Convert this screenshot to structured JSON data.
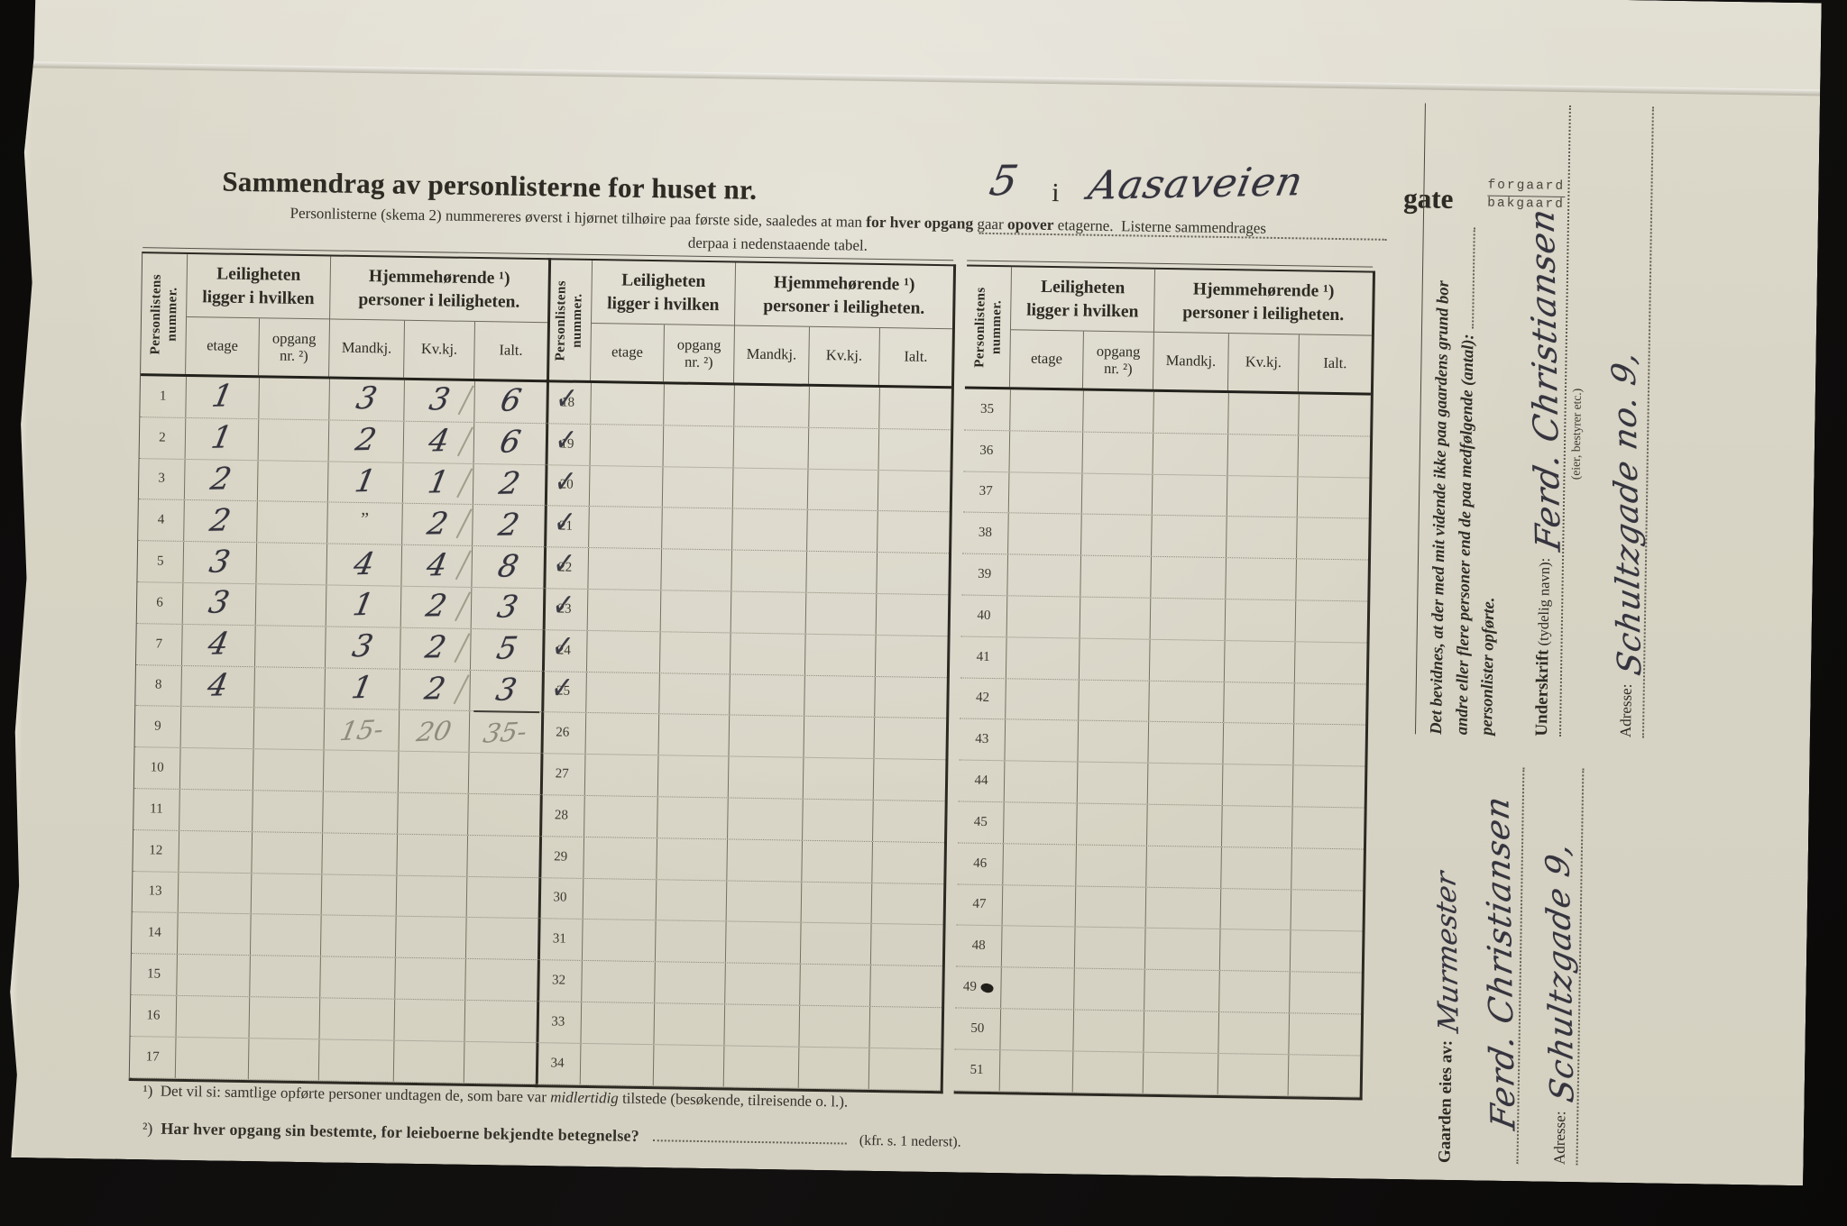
{
  "header": {
    "title_prefix": "Sammendrag av personlisterne for huset nr.",
    "house_number": "5",
    "connector": "i",
    "street_name": "Aasaveien",
    "gate_label": "gate",
    "gate_option_top": "forgaard",
    "gate_option_bottom": "bakgaard"
  },
  "subtitle": {
    "part1": "Personlisterne (skema 2) nummereres øverst i hjørnet tilhøire paa første side, saaledes at man",
    "bold1": "for hver opgang",
    "part2": "gaar",
    "bold2": "opover",
    "part3": "etagerne.",
    "part4": "Listerne sammendrages",
    "line2": "derpaa i nedenstaaende tabel."
  },
  "table_headers": {
    "num_vertical": "Personlistens nummer.",
    "group1_line1": "Leiligheten",
    "group1_line2": "ligger i hvilken",
    "group2_line1": "Hjemmehørende ¹)",
    "group2_line2": "personer i leiligheten.",
    "etage": "etage",
    "opgang_line1": "opgang",
    "opgang_line2": "nr. ²)",
    "mandkj": "Mandkj.",
    "kvkj": "Kv.kj.",
    "ialt": "Ialt."
  },
  "marks": {
    "check_glyph": "✓"
  },
  "tables": [
    {
      "rows": [
        {
          "num": "1",
          "etage": "1",
          "mandkj": "3",
          "kvkj": "3",
          "ialt": "6",
          "check": true,
          "pencil": true
        },
        {
          "num": "2",
          "etage": "1",
          "mandkj": "2",
          "kvkj": "4",
          "ialt": "6",
          "check": true,
          "pencil": true
        },
        {
          "num": "3",
          "etage": "2",
          "mandkj": "1",
          "kvkj": "1",
          "ialt": "2",
          "check": true,
          "pencil": true
        },
        {
          "num": "4",
          "etage": "2",
          "mandkj": "”",
          "ditto": true,
          "kvkj": "2",
          "ialt": "2",
          "check": true,
          "pencil": true
        },
        {
          "num": "5",
          "etage": "3",
          "mandkj": "4",
          "kvkj": "4",
          "ialt": "8",
          "check": true,
          "pencil": true
        },
        {
          "num": "6",
          "etage": "3",
          "mandkj": "1",
          "kvkj": "2",
          "ialt": "3",
          "check": true,
          "pencil": true
        },
        {
          "num": "7",
          "etage": "4",
          "mandkj": "3",
          "kvkj": "2",
          "ialt": "5",
          "check": true,
          "pencil": true
        },
        {
          "num": "8",
          "etage": "4",
          "mandkj": "1",
          "kvkj": "2",
          "ialt": "3",
          "check": true,
          "pencil": true,
          "sumline": true
        },
        {
          "num": "9",
          "mandkj": "15-",
          "kvkj": "20",
          "ialt": "35-",
          "pencil_row": true
        },
        {
          "num": "10"
        },
        {
          "num": "11"
        },
        {
          "num": "12"
        },
        {
          "num": "13"
        },
        {
          "num": "14"
        },
        {
          "num": "15"
        },
        {
          "num": "16"
        },
        {
          "num": "17"
        }
      ]
    },
    {
      "rows": [
        {
          "num": "18"
        },
        {
          "num": "19"
        },
        {
          "num": "20"
        },
        {
          "num": "21"
        },
        {
          "num": "22"
        },
        {
          "num": "23"
        },
        {
          "num": "24"
        },
        {
          "num": "25"
        },
        {
          "num": "26"
        },
        {
          "num": "27"
        },
        {
          "num": "28"
        },
        {
          "num": "29"
        },
        {
          "num": "30"
        },
        {
          "num": "31"
        },
        {
          "num": "32"
        },
        {
          "num": "33"
        },
        {
          "num": "34"
        }
      ]
    },
    {
      "rows": [
        {
          "num": "35"
        },
        {
          "num": "36"
        },
        {
          "num": "37"
        },
        {
          "num": "38"
        },
        {
          "num": "39"
        },
        {
          "num": "40"
        },
        {
          "num": "41"
        },
        {
          "num": "42"
        },
        {
          "num": "43"
        },
        {
          "num": "44"
        },
        {
          "num": "45"
        },
        {
          "num": "46"
        },
        {
          "num": "47"
        },
        {
          "num": "48"
        },
        {
          "num": "49",
          "blot": true
        },
        {
          "num": "50"
        },
        {
          "num": "51"
        }
      ]
    }
  ],
  "footnotes": {
    "fn1_marker": "¹)",
    "fn1_part1": "Det vil si: samtlige opførte personer undtagen de, som bare var",
    "fn1_italic": "midlertidig",
    "fn1_part2": "tilstede (besøkende, tilreisende o. l.).",
    "fn2_marker": "²)",
    "fn2_text": "Har hver opgang sin bestemte, for leieboerne bekjendte betegnelse?",
    "fn2_suffix": "(kfr. s. 1 nederst)."
  },
  "sidebar": {
    "affidavit_line1": "Det bevidnes, at der med mit vidende ikke paa gaardens grund bor",
    "affidavit_line2": "andre eller flere personer end de paa medfølgende (antal):",
    "affidavit_line3": "personlister opførte.",
    "underskrift_bold": "Underskrift",
    "underskrift_rest": "(tydelig navn):",
    "signature": "Ferd. Christiansen",
    "signature_note": "(eier, bestyrer etc.)",
    "adresse_label": "Adresse:",
    "adresse_value": "Schultzgade no. 9,",
    "owner_label": "Gaarden eies av:",
    "owner_title": "Murmester",
    "owner_name": "Ferd. Christiansen",
    "owner_adresse_label": "Adresse:",
    "owner_adresse_value": "Schultzgade 9,"
  },
  "colors": {
    "paper": "#d8d4c5",
    "ink": "#2d2b24",
    "hand_ink": "#35343e",
    "pencil": "#8f8b7c"
  }
}
